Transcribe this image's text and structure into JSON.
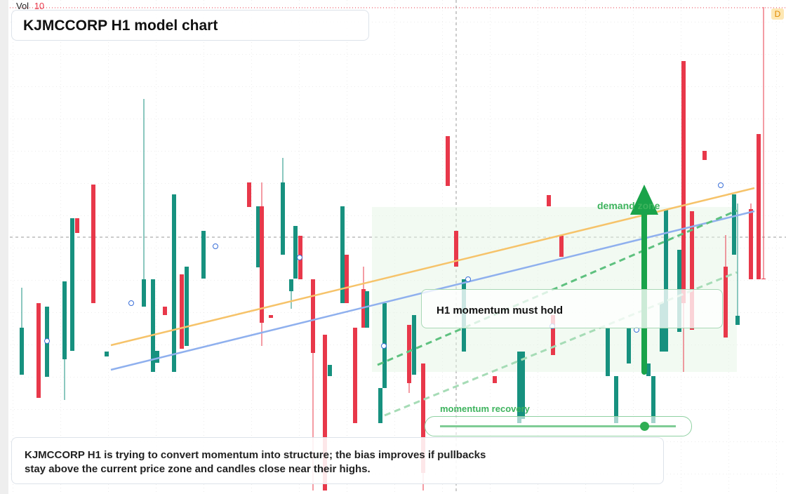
{
  "header": {
    "vol_label": "Vol",
    "vol_value": "10",
    "title": "KJMCCORP H1 model chart",
    "badge": "D"
  },
  "chart_data": {
    "type": "candlestick",
    "xlim": [
      0,
      112
    ],
    "ylim": [
      0,
      70.4
    ],
    "up_color": "#17917f",
    "down_color": "#e8384a",
    "x": [
      3.1,
      5.5,
      6.7,
      9.2,
      10.3,
      11.0,
      13.3,
      15.2,
      20.5,
      21.8,
      22.4,
      23.5,
      24.8,
      25.9,
      26.6,
      29.0,
      35.5,
      36.8,
      37.3,
      38.6,
      40.3,
      41.5,
      42.1,
      42.8,
      44.6,
      46.3,
      47.0,
      48.8,
      49.4,
      50.6,
      51.8,
      52.3,
      54.2,
      54.8,
      58.3,
      59.0,
      60.3,
      63.8,
      65.0,
      66.1,
      70.5,
      74.0,
      74.5,
      78.2,
      78.8,
      80.0,
      86.6,
      87.8,
      89.6,
      92.4,
      93.1,
      94.3,
      94.9,
      96.8,
      97.4,
      98.6,
      100.4,
      103.4,
      104.6,
      105.1,
      107.0,
      108.1,
      108.8
    ],
    "open": [
      17.0,
      27.2,
      16.7,
      19.2,
      20.4,
      39.3,
      44.1,
      19.6,
      26.7,
      17.4,
      18.7,
      26.7,
      17.4,
      31.3,
      21.1,
      30.7,
      44.4,
      32.3,
      41.0,
      25.5,
      34.1,
      28.9,
      30.7,
      36.8,
      30.6,
      22.7,
      16.8,
      27.2,
      34.1,
      23.7,
      29.2,
      23.7,
      10.1,
      15.1,
      24.1,
      17.0,
      18.6,
      51.0,
      37.5,
      20.3,
      16.8,
      10.1,
      10.7,
      42.6,
      25.5,
      36.8,
      16.8,
      10.1,
      18.6,
      16.8,
      10.1,
      20.3,
      20.3,
      23.1,
      61.7,
      40.3,
      48.9,
      32.4,
      34.1,
      24.1,
      40.6,
      51.3,
      30.7
    ],
    "high": [
      29.4,
      27.2,
      26.7,
      30.3,
      39.3,
      39.3,
      44.1,
      20.3,
      56.3,
      30.6,
      20.4,
      26.7,
      42.7,
      31.3,
      32.4,
      37.5,
      44.4,
      41.0,
      44.4,
      25.5,
      47.9,
      30.6,
      38.2,
      36.8,
      30.6,
      22.7,
      18.4,
      41.0,
      34.1,
      23.7,
      32.4,
      28.9,
      15.1,
      27.2,
      24.1,
      25.5,
      18.6,
      51.0,
      37.5,
      30.6,
      16.8,
      20.3,
      20.3,
      42.6,
      25.5,
      36.8,
      23.7,
      16.8,
      23.7,
      18.6,
      16.8,
      27.2,
      40.6,
      34.8,
      61.7,
      40.3,
      48.9,
      36.9,
      42.7,
      41.4,
      41.4,
      51.3,
      69.4
    ],
    "low": [
      17.0,
      13.7,
      16.7,
      13.4,
      20.4,
      37.2,
      27.2,
      19.6,
      26.7,
      17.4,
      18.7,
      25.5,
      17.4,
      20.7,
      21.1,
      30.7,
      40.9,
      32.3,
      21.1,
      25.1,
      34.1,
      26.4,
      30.7,
      30.6,
      0.5,
      0.5,
      16.8,
      27.2,
      27.2,
      10.1,
      23.7,
      23.7,
      10.1,
      15.1,
      14.4,
      17.0,
      0.5,
      43.9,
      32.4,
      20.3,
      15.8,
      10.1,
      10.7,
      41.0,
      19.8,
      33.8,
      16.8,
      10.1,
      18.6,
      16.8,
      10.1,
      20.3,
      20.3,
      23.1,
      17.4,
      23.4,
      47.6,
      22.3,
      34.1,
      24.1,
      30.6,
      30.6,
      30.6
    ],
    "close": [
      23.7,
      13.7,
      26.7,
      30.3,
      39.3,
      37.2,
      27.2,
      20.3,
      30.6,
      30.6,
      20.4,
      25.5,
      42.7,
      20.7,
      32.4,
      37.5,
      40.9,
      41.0,
      24.4,
      25.1,
      44.4,
      30.6,
      38.2,
      30.6,
      20.1,
      0.5,
      18.4,
      41.0,
      27.2,
      10.1,
      23.7,
      28.9,
      15.1,
      27.2,
      15.8,
      25.5,
      3.0,
      43.9,
      32.4,
      30.6,
      15.8,
      20.3,
      20.3,
      41.0,
      19.8,
      33.8,
      23.7,
      16.8,
      23.7,
      18.6,
      16.8,
      27.2,
      40.6,
      34.8,
      27.2,
      23.4,
      47.6,
      22.3,
      42.7,
      25.4,
      30.6,
      30.6,
      30.6
    ],
    "trendlines": [
      {
        "color": "#f6c36a",
        "dashed": false,
        "x": [
          15.8,
          107.5
        ],
        "values": [
          21.2,
          43.6
        ]
      },
      {
        "color": "#8fb0ee",
        "dashed": false,
        "x": [
          15.8,
          107.5
        ],
        "values": [
          17.7,
          40.3
        ]
      },
      {
        "color": "#5ec17f",
        "dashed": true,
        "x": [
          53.8,
          105.0
        ],
        "values": [
          18.4,
          40.4
        ]
      },
      {
        "color": "#a6dcb6",
        "dashed": true,
        "x": [
          54.8,
          105.0
        ],
        "values": [
          11.2,
          31.6
        ]
      }
    ],
    "markers": {
      "color": "#3a6fd8",
      "x": [
        6.7,
        18.7,
        30.7,
        42.7,
        54.7,
        66.7,
        78.7,
        90.7,
        102.7
      ],
      "values": [
        21.8,
        27.2,
        35.3,
        33.7,
        21.1,
        30.6,
        23.9,
        23.4,
        44.0
      ]
    },
    "zone": {
      "label": "demand zone",
      "color": "#e6f5e6",
      "x": [
        53,
        105
      ],
      "values": [
        17.4,
        40.9
      ]
    },
    "arrow": {
      "color": "#1aa34a",
      "x": 91.8,
      "values": [
        17.4,
        44.1
      ]
    },
    "callout": "H1 momentum must hold",
    "slider_label": "momentum recovery"
  },
  "note": [
    "KJMCCORP H1 is trying to convert momentum into structure; the bias improves if pullbacks",
    "stay above the current price zone and candles close near their highs."
  ]
}
